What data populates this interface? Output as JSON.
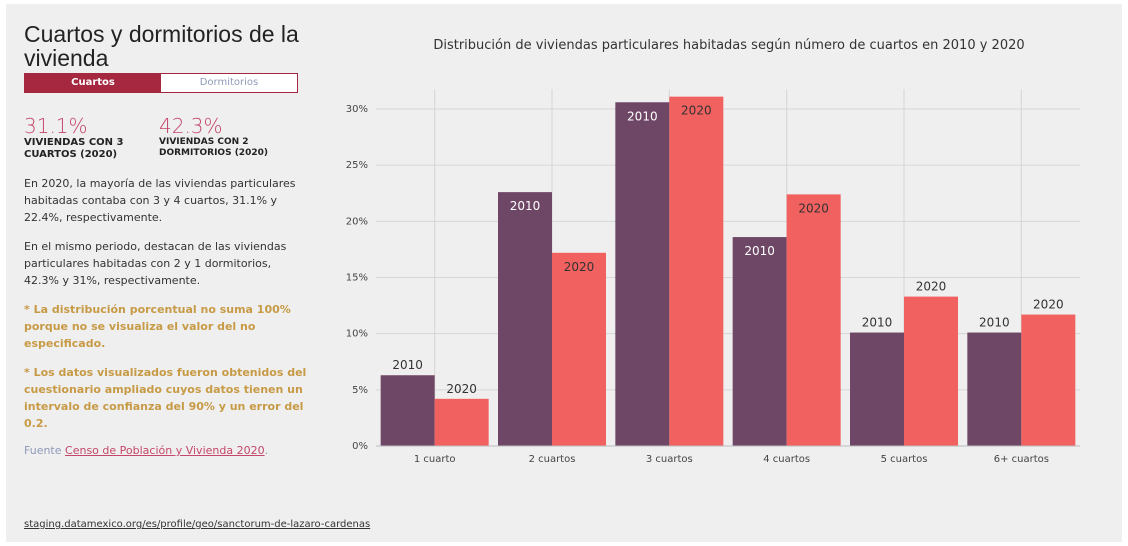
{
  "sidebar": {
    "title": "Cuartos y dormitorios de la vivienda",
    "tabs": [
      {
        "label": "Cuartos",
        "active": true
      },
      {
        "label": "Dormitorios",
        "active": false
      }
    ],
    "stats": [
      {
        "value": "31.1%",
        "label": "Viviendas con 3 cuartos (2020)"
      },
      {
        "value": "42.3%",
        "label": "Viviendas con 2 dormitorios (2020)"
      }
    ],
    "paragraphs": [
      "En 2020, la mayoría de las viviendas particulares habitadas contaba con 3 y 4 cuartos, 31.1% y 22.4%, respectivamente.",
      "En el mismo periodo, destacan de las viviendas particulares habitadas con 2 y 1 dormitorios, 42.3% y 31%, respectivamente."
    ],
    "notes": [
      "* La distribución porcentual no suma 100% porque no se visualiza el valor del no especificado.",
      "* Los datos visualizados fueron obtenidos del cuestionario ampliado cuyos datos tienen un intervalo de confianza del 90% y un error del 0.2."
    ],
    "source_prefix": "Fuente",
    "source_link": "Censo de Población y Vivienda 2020"
  },
  "footer": {
    "url": "staging.datamexico.org/es/profile/geo/sanctorum-de-lazaro-cardenas"
  },
  "colors": {
    "accent": "#a52740",
    "series_2010": "#6f4766",
    "series_2020": "#f06160",
    "note": "#c79a45"
  },
  "chart_data": {
    "type": "bar",
    "title": "Distribución de viviendas particulares habitadas según número de cuartos en 2010 y 2020",
    "categories": [
      "1 cuarto",
      "2 cuartos",
      "3 cuartos",
      "4 cuartos",
      "5 cuartos",
      "6+ cuartos"
    ],
    "series": [
      {
        "name": "2010",
        "values": [
          6.3,
          22.6,
          30.6,
          18.6,
          10.1,
          10.1
        ]
      },
      {
        "name": "2020",
        "values": [
          4.2,
          17.2,
          31.1,
          22.4,
          13.3,
          11.7
        ]
      }
    ],
    "ylim": [
      0,
      30
    ],
    "yticks": [
      0,
      5,
      10,
      15,
      20,
      25,
      30
    ],
    "ytick_labels": [
      "0%",
      "5%",
      "10%",
      "15%",
      "20%",
      "25%",
      "30%"
    ],
    "grid": true,
    "xlabel": "",
    "ylabel": ""
  }
}
